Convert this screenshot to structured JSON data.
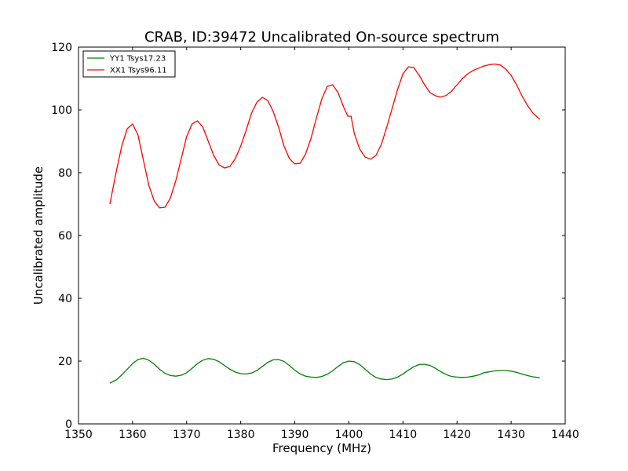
{
  "chart_data": {
    "type": "line",
    "title": "CRAB, ID:39472 Uncalibrated On-source spectrum",
    "xlabel": "Frequency (MHz)",
    "ylabel": "Uncalibrated amplitude",
    "xlim": [
      1350,
      1440
    ],
    "ylim": [
      0,
      120
    ],
    "xticks": [
      1350,
      1360,
      1370,
      1380,
      1390,
      1400,
      1410,
      1420,
      1430,
      1440
    ],
    "yticks": [
      0,
      20,
      40,
      60,
      80,
      100,
      120
    ],
    "grid": false,
    "legend_position": "top-left",
    "series": [
      {
        "name": "YY1 Tsys17.23",
        "color": "#008000",
        "x": [
          1355.8,
          1357,
          1358,
          1359,
          1360,
          1361,
          1362,
          1363,
          1364,
          1365,
          1366,
          1367,
          1368,
          1369,
          1370,
          1371,
          1372,
          1373,
          1374,
          1375,
          1376,
          1377,
          1378,
          1379,
          1380,
          1381,
          1382,
          1383,
          1384,
          1385,
          1386,
          1387,
          1388,
          1389,
          1390,
          1391,
          1392,
          1393,
          1394,
          1395,
          1396,
          1397,
          1398,
          1399,
          1400,
          1401,
          1402,
          1403,
          1404,
          1405,
          1406,
          1407,
          1408,
          1409,
          1410,
          1411,
          1412,
          1413,
          1414,
          1415,
          1416,
          1417,
          1418,
          1419,
          1420,
          1421,
          1422,
          1423,
          1424,
          1425,
          1426,
          1427,
          1428,
          1429,
          1430,
          1431,
          1432,
          1433,
          1434,
          1435.3
        ],
        "y": [
          13.0,
          14.0,
          15.6,
          17.4,
          19.2,
          20.5,
          20.9,
          20.3,
          19.0,
          17.4,
          16.1,
          15.4,
          15.2,
          15.5,
          16.3,
          17.7,
          19.2,
          20.3,
          20.8,
          20.6,
          19.8,
          18.6,
          17.4,
          16.5,
          16.0,
          15.9,
          16.2,
          17.0,
          18.3,
          19.6,
          20.4,
          20.5,
          19.9,
          18.6,
          17.1,
          15.9,
          15.2,
          14.9,
          14.8,
          15.1,
          15.8,
          16.9,
          18.3,
          19.5,
          20.0,
          19.8,
          18.9,
          17.4,
          15.9,
          14.8,
          14.3,
          14.1,
          14.3,
          14.9,
          15.9,
          17.1,
          18.2,
          18.9,
          19.0,
          18.6,
          17.7,
          16.6,
          15.7,
          15.1,
          14.9,
          14.8,
          14.9,
          15.2,
          15.6,
          16.3,
          16.6,
          16.9,
          17.0,
          17.0,
          16.8,
          16.4,
          15.9,
          15.4,
          15.0,
          14.7
        ]
      },
      {
        "name": "XX1 Tsys96.11",
        "color": "#ff0000",
        "x": [
          1355.8,
          1357,
          1358,
          1359,
          1360,
          1361,
          1362,
          1363,
          1364,
          1365,
          1366,
          1367,
          1368,
          1369,
          1370,
          1371,
          1372,
          1373,
          1374,
          1375,
          1376,
          1377,
          1378,
          1379,
          1380,
          1381,
          1382,
          1383,
          1384,
          1385,
          1386,
          1387,
          1388,
          1389,
          1390,
          1391,
          1392,
          1393,
          1394,
          1395,
          1396,
          1397,
          1398,
          1399,
          1399.8,
          1400.4,
          1401,
          1402,
          1403,
          1404,
          1405,
          1406,
          1407,
          1408,
          1409,
          1410,
          1411,
          1412,
          1413,
          1414,
          1415,
          1416,
          1417,
          1418,
          1419,
          1420,
          1421,
          1422,
          1423,
          1424,
          1425,
          1426,
          1427,
          1428,
          1429,
          1430,
          1431,
          1432,
          1433,
          1434,
          1435.3
        ],
        "y": [
          70.0,
          80.5,
          88.5,
          94.0,
          95.5,
          92.0,
          84.0,
          76.0,
          71.0,
          68.8,
          69.0,
          72.0,
          77.5,
          84.5,
          91.5,
          95.5,
          96.5,
          94.5,
          90.0,
          85.5,
          82.5,
          81.5,
          82.0,
          84.5,
          88.5,
          93.5,
          99.0,
          102.5,
          104.0,
          103.0,
          99.5,
          94.5,
          88.5,
          84.5,
          82.8,
          83.0,
          86.0,
          91.0,
          97.5,
          103.5,
          107.5,
          108.0,
          105.5,
          101.0,
          98.0,
          98.0,
          92.5,
          87.5,
          85.0,
          84.3,
          85.5,
          89.0,
          94.5,
          100.5,
          106.5,
          111.5,
          113.7,
          113.5,
          111.0,
          108.0,
          105.5,
          104.5,
          104.1,
          104.6,
          106.0,
          108.0,
          110.0,
          111.5,
          112.6,
          113.3,
          114.0,
          114.4,
          114.6,
          114.3,
          113.0,
          111.0,
          108.0,
          104.5,
          101.5,
          99.0,
          97.0
        ]
      }
    ]
  }
}
